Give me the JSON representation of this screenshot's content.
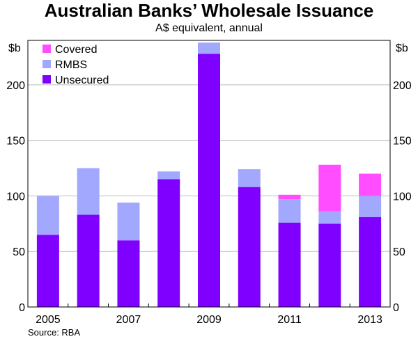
{
  "chart_data": {
    "type": "bar",
    "stacked": true,
    "title": "Australian Banks’ Wholesale Issuance",
    "subtitle": "A$ equivalent, annual",
    "ylabel_left": "$b",
    "ylabel_right": "$b",
    "ylim": [
      0,
      240
    ],
    "yticks": [
      0,
      50,
      100,
      150,
      200
    ],
    "categories": [
      "2005",
      "2006",
      "2007",
      "2008",
      "2009",
      "2010",
      "2011",
      "2012",
      "2013"
    ],
    "xtick_labels": [
      "2005",
      "",
      "2007",
      "",
      "2009",
      "",
      "2011",
      "",
      "2013"
    ],
    "series": [
      {
        "name": "Unsecured",
        "color": "#8000ff",
        "values": [
          65,
          83,
          60,
          115,
          228,
          108,
          76,
          75,
          81
        ]
      },
      {
        "name": "RMBS",
        "color": "#a3a8ff",
        "values": [
          35,
          42,
          34,
          7,
          10,
          16,
          21,
          11,
          19
        ]
      },
      {
        "name": "Covered",
        "color": "#ff4dff",
        "values": [
          0,
          0,
          0,
          0,
          0,
          0,
          4,
          42,
          20
        ]
      }
    ],
    "legend": {
      "position": "top-left",
      "order": [
        "Covered",
        "RMBS",
        "Unsecured"
      ]
    },
    "grid": true,
    "source": "Source: RBA"
  }
}
